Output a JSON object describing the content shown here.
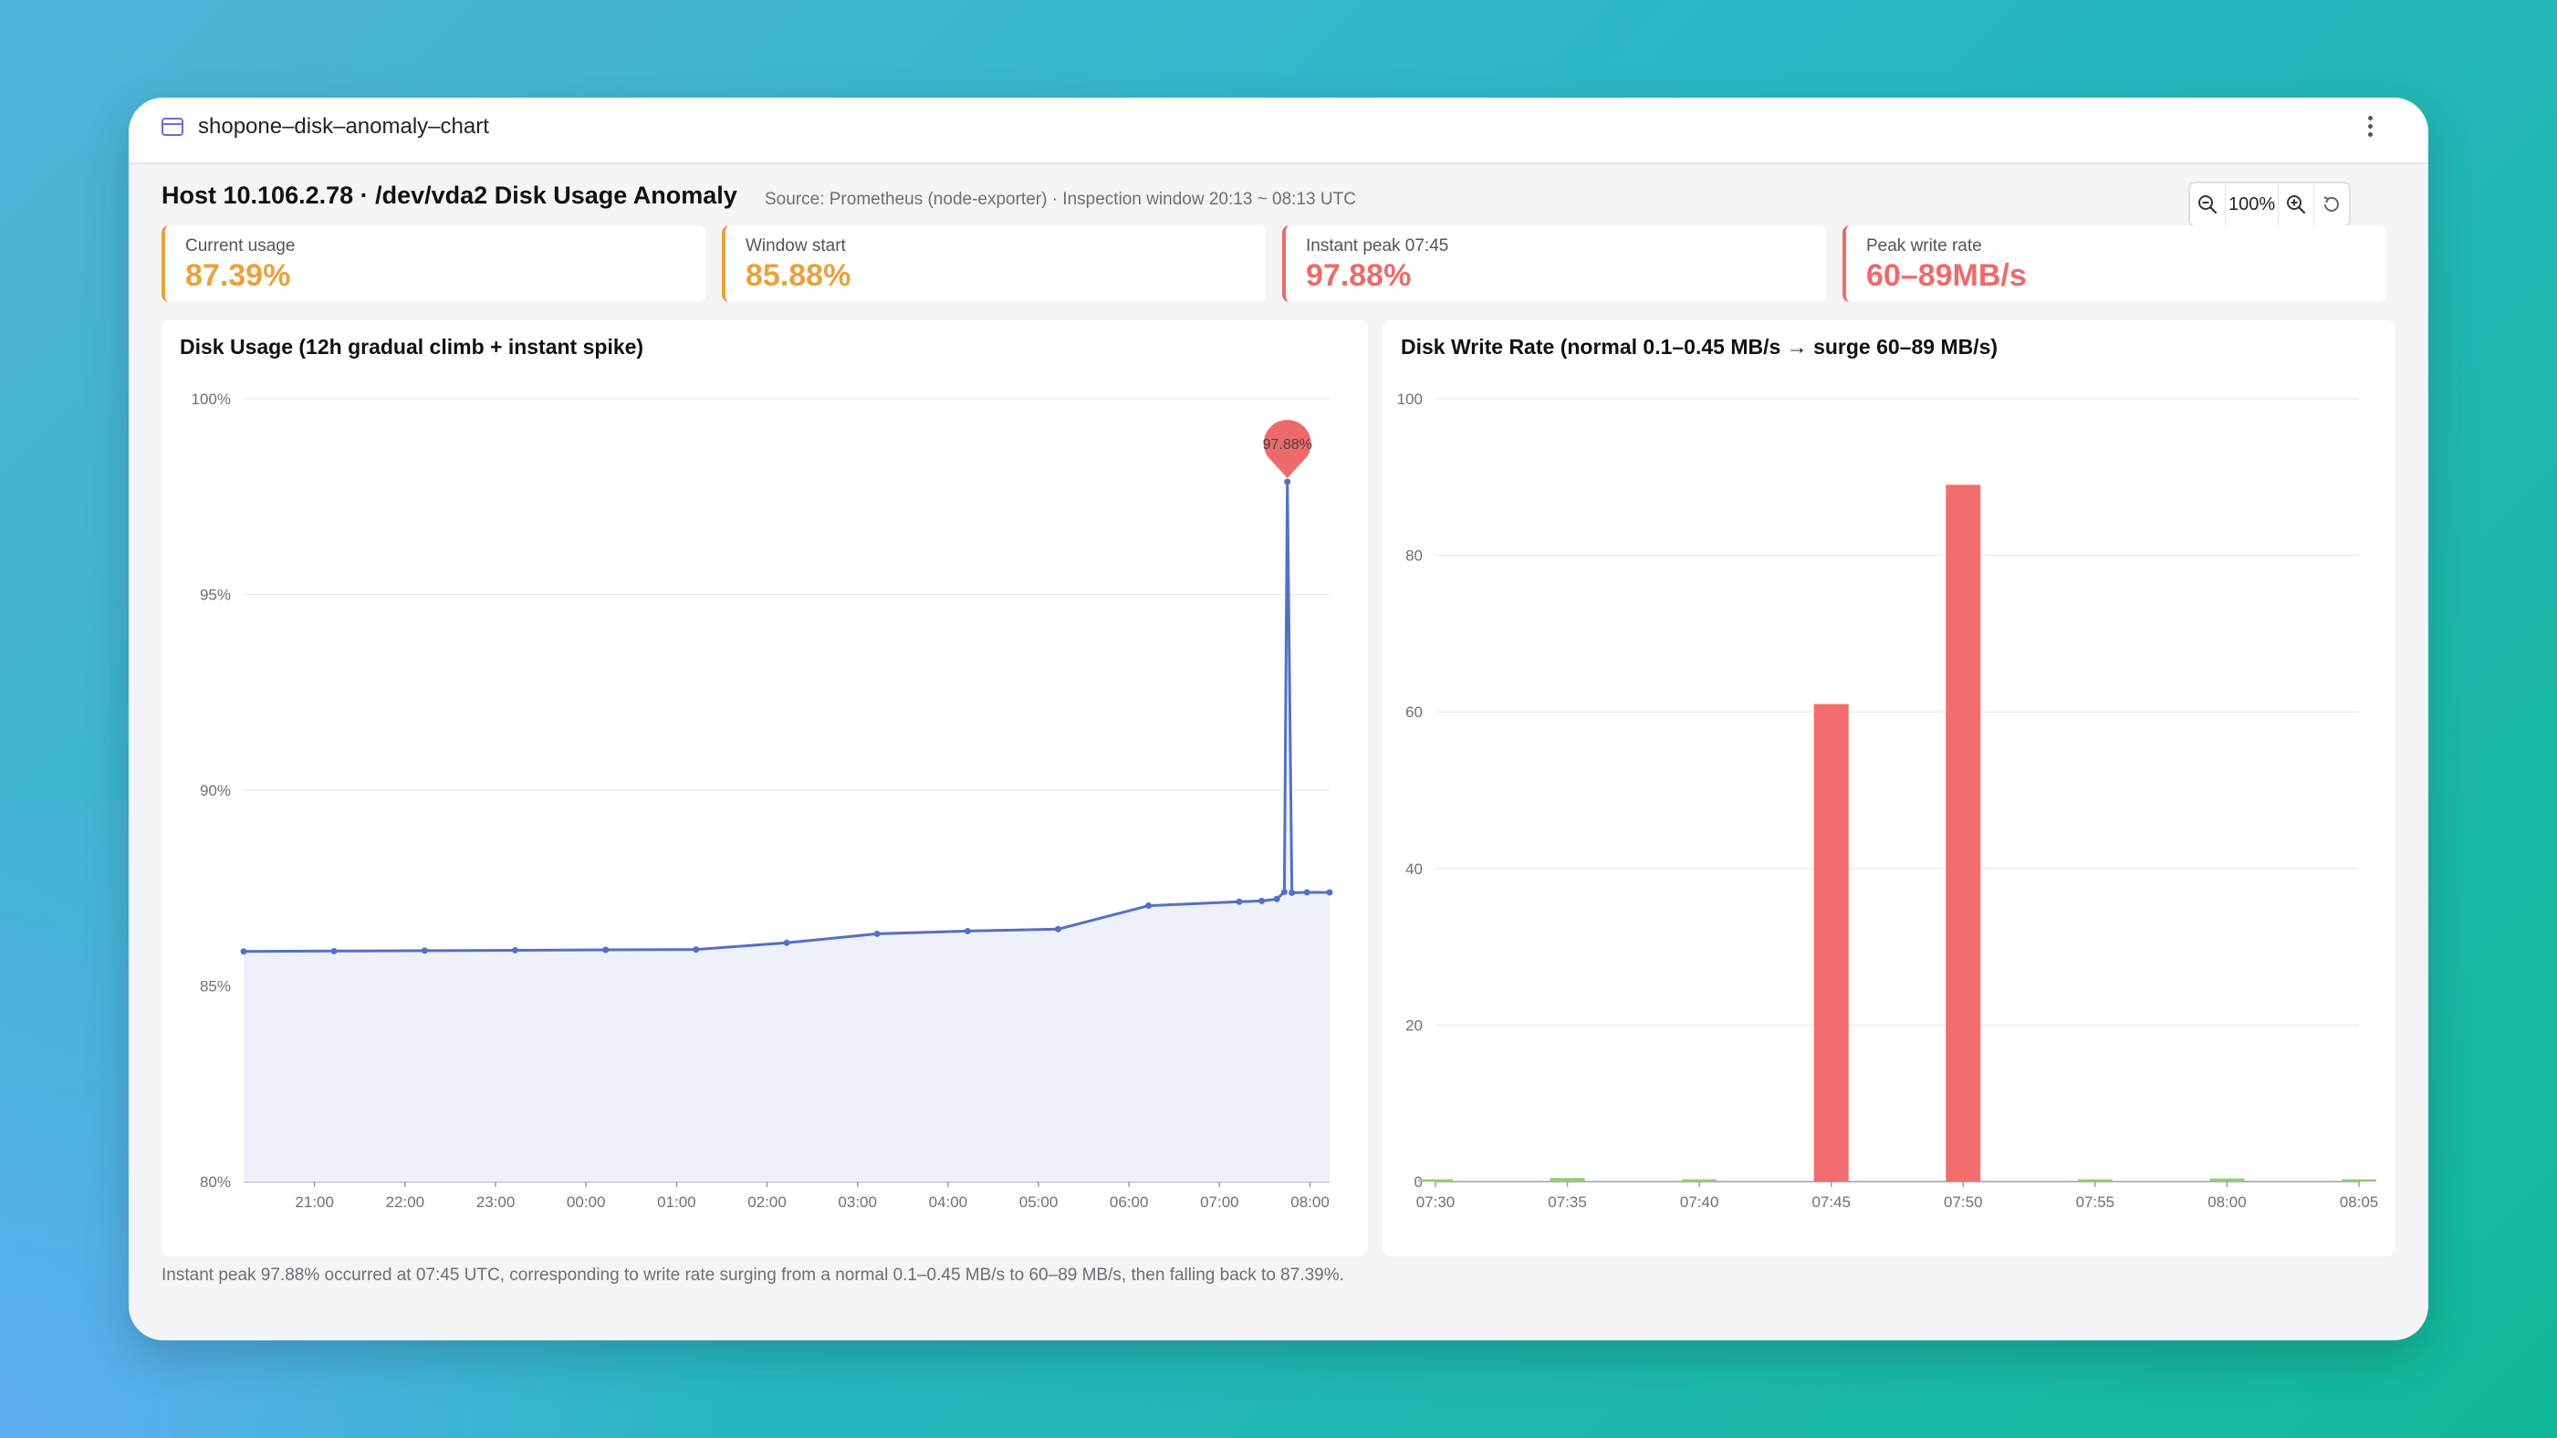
{
  "window": {
    "title": "shopone–disk–anomaly–chart",
    "icon": "browser-window-icon",
    "menu_icon": "more-vertical-icon"
  },
  "header": {
    "title": "Host 10.106.2.78 · /dev/vda2 Disk Usage Anomaly",
    "source": "Source: Prometheus (node-exporter) · Inspection window 20:13 ~ 08:13 UTC"
  },
  "zoom": {
    "level": "100%",
    "zoom_out_icon": "zoom-out-icon",
    "zoom_in_icon": "zoom-in-icon",
    "reset_icon": "reset-icon"
  },
  "kpis": [
    {
      "label": "Current usage",
      "value": "87.39%",
      "color": "#e9a23b"
    },
    {
      "label": "Window start",
      "value": "85.88%",
      "color": "#e9a23b"
    },
    {
      "label": "Instant peak 07:45",
      "value": "97.88%",
      "color": "#ee6a6a"
    },
    {
      "label": "Peak write rate",
      "value": "60–89MB/s",
      "color": "#ee6a6a"
    }
  ],
  "chart_data": [
    {
      "type": "area",
      "title": "Disk Usage (12h gradual climb + instant spike)",
      "xlabel": "",
      "ylabel": "",
      "ylim": [
        80,
        100
      ],
      "yticks": [
        80,
        85,
        90,
        95,
        100
      ],
      "ytick_labels": [
        "80%",
        "85%",
        "90%",
        "95%",
        "100%"
      ],
      "x_ticks": [
        "21:00",
        "22:00",
        "23:00",
        "00:00",
        "01:00",
        "02:00",
        "03:00",
        "04:00",
        "05:00",
        "06:00",
        "07:00",
        "08:00"
      ],
      "x_start": "20:13",
      "x_end": "08:13",
      "line_color": "#5470c6",
      "fill_color": "#eef1fa",
      "grid": true,
      "series": [
        {
          "x": [
            "20:13",
            "21:13",
            "22:13",
            "23:13",
            "00:13",
            "01:13",
            "02:13",
            "03:13",
            "04:13",
            "05:13",
            "06:13",
            "07:13",
            "07:28",
            "07:38",
            "07:43",
            "07:45",
            "07:48",
            "07:58",
            "08:13"
          ],
          "y": [
            85.88,
            85.89,
            85.9,
            85.91,
            85.92,
            85.93,
            86.1,
            86.33,
            86.4,
            86.45,
            87.05,
            87.15,
            87.17,
            87.22,
            87.4,
            97.88,
            87.38,
            87.39,
            87.39
          ]
        }
      ],
      "annotations": [
        {
          "x": "07:45",
          "y": 97.88,
          "label": "97.88%",
          "color": "#ee6a6a"
        }
      ]
    },
    {
      "type": "bar",
      "title": "Disk Write Rate (normal 0.1–0.45 MB/s → surge 60–89 MB/s)",
      "xlabel": "",
      "ylabel": "",
      "ylim": [
        0,
        100
      ],
      "yticks": [
        0,
        20,
        40,
        60,
        80,
        100
      ],
      "categories": [
        "07:30",
        "07:35",
        "07:40",
        "07:45",
        "07:50",
        "07:55",
        "08:00",
        "08:05"
      ],
      "values": [
        0.15,
        0.45,
        0.2,
        61,
        89,
        0.1,
        0.4,
        0.1
      ],
      "normal_color": "#91cc75",
      "surge_color": "#f26d6d",
      "surge_threshold": 10,
      "grid": true
    }
  ],
  "footnote": "Instant peak 97.88% occurred at 07:45 UTC, corresponding to write rate surging from a normal 0.1–0.45 MB/s to 60–89 MB/s, then falling back to 87.39%."
}
